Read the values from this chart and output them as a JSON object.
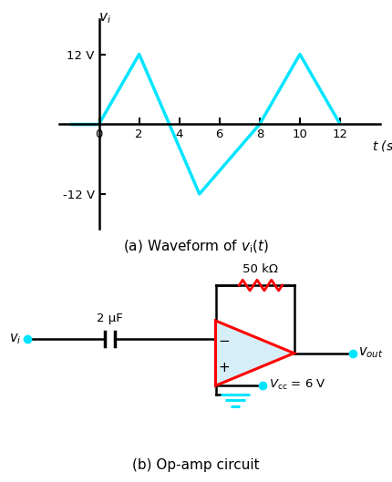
{
  "flat_t": [
    -1.5,
    0
  ],
  "flat_v": [
    0,
    0
  ],
  "wave_t": [
    0,
    2,
    5,
    8,
    10,
    12
  ],
  "wave_v": [
    0,
    12,
    -12,
    0,
    12,
    0
  ],
  "waveform_color": "#00E5FF",
  "ytick_vals": [
    -12,
    12
  ],
  "ytick_labels": [
    "-12 V",
    "12 V"
  ],
  "xtick_vals": [
    0,
    2,
    4,
    6,
    8,
    10,
    12
  ],
  "ylim": [
    -18,
    18
  ],
  "xlim": [
    -2,
    14
  ],
  "background": "#FFFFFF",
  "opamp_fill": "#D6EEF8",
  "opamp_outline": "#FF0000",
  "wire_color": "#000000",
  "resistor_color": "#FF0000",
  "resistor_label": "50 kΩ",
  "cap_label": "2 μF",
  "ground_color": "#00E5FF",
  "node_color": "#00E5FF",
  "vcc_label": "V_{cc} = 6 V"
}
